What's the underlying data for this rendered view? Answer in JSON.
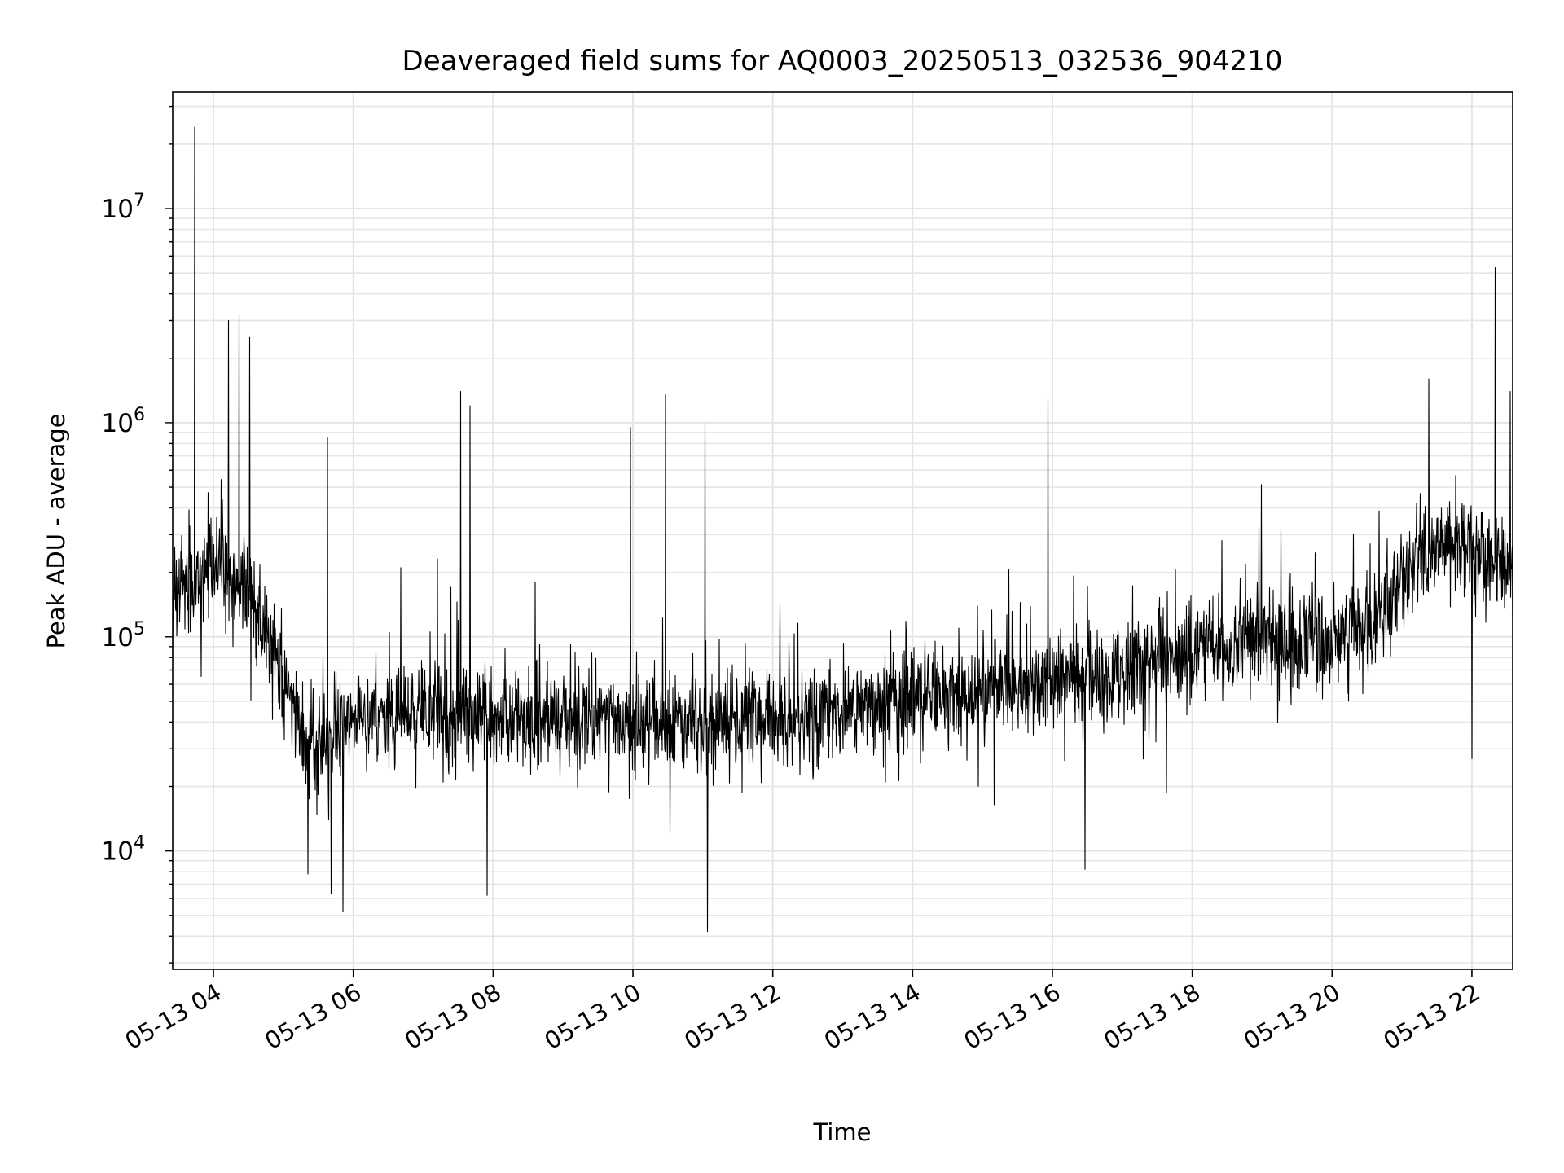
{
  "chart_data": {
    "type": "line",
    "title": "Deaveraged field sums for AQ0003_20250513_032536_904210",
    "xlabel": "Time",
    "ylabel": "Peak ADU - average",
    "x_axis": {
      "kind": "datetime",
      "range": [
        "2025-05-13 03:25",
        "2025-05-13 22:35"
      ],
      "ticks": [
        "05-13 04",
        "05-13 06",
        "05-13 08",
        "05-13 10",
        "05-13 12",
        "05-13 14",
        "05-13 16",
        "05-13 18",
        "05-13 20",
        "05-13 22"
      ]
    },
    "y_axis": {
      "scale": "log",
      "range": [
        2800,
        35000000
      ],
      "ticks": [
        {
          "base": "10",
          "exp": "4",
          "value": 10000
        },
        {
          "base": "10",
          "exp": "5",
          "value": 100000
        },
        {
          "base": "10",
          "exp": "6",
          "value": 1000000
        },
        {
          "base": "10",
          "exp": "7",
          "value": 10000000
        }
      ]
    },
    "grid": true,
    "line_color": "#000000",
    "grid_color": "#e5e5e5",
    "series": [
      {
        "name": "",
        "points": [
          [
            "2025-05-13 03:25",
            150000
          ],
          [
            "2025-05-13 03:35",
            180000
          ],
          [
            "2025-05-13 03:45",
            190000
          ],
          [
            "2025-05-13 04:00",
            200000
          ],
          [
            "2025-05-13 04:15",
            190000
          ],
          [
            "2025-05-13 04:30",
            160000
          ],
          [
            "2025-05-13 04:45",
            110000
          ],
          [
            "2025-05-13 05:00",
            70000
          ],
          [
            "2025-05-13 05:15",
            35000
          ],
          [
            "2025-05-13 05:30",
            30000
          ],
          [
            "2025-05-13 05:45",
            40000
          ],
          [
            "2025-05-13 06:00",
            42000
          ],
          [
            "2025-05-13 07:00",
            45000
          ],
          [
            "2025-05-13 08:00",
            42000
          ],
          [
            "2025-05-13 09:00",
            40000
          ],
          [
            "2025-05-13 10:00",
            40000
          ],
          [
            "2025-05-13 11:00",
            40000
          ],
          [
            "2025-05-13 12:00",
            40000
          ],
          [
            "2025-05-13 13:00",
            45000
          ],
          [
            "2025-05-13 14:00",
            50000
          ],
          [
            "2025-05-13 15:00",
            55000
          ],
          [
            "2025-05-13 16:00",
            60000
          ],
          [
            "2025-05-13 17:00",
            70000
          ],
          [
            "2025-05-13 18:00",
            90000
          ],
          [
            "2025-05-13 19:00",
            95000
          ],
          [
            "2025-05-13 20:00",
            100000
          ],
          [
            "2025-05-13 20:30",
            110000
          ],
          [
            "2025-05-13 21:00",
            180000
          ],
          [
            "2025-05-13 21:30",
            280000
          ],
          [
            "2025-05-13 22:00",
            250000
          ],
          [
            "2025-05-13 22:35",
            220000
          ]
        ],
        "peaks": [
          [
            "2025-05-13 03:44",
            24000000
          ],
          [
            "2025-05-13 04:13",
            3000000
          ],
          [
            "2025-05-13 04:22",
            3200000
          ],
          [
            "2025-05-13 04:31",
            2500000
          ],
          [
            "2025-05-13 05:38",
            850000
          ],
          [
            "2025-05-13 07:32",
            1400000
          ],
          [
            "2025-05-13 07:40",
            1200000
          ],
          [
            "2025-05-13 09:58",
            950000
          ],
          [
            "2025-05-13 10:28",
            1350000
          ],
          [
            "2025-05-13 11:02",
            1000000
          ],
          [
            "2025-05-13 15:56",
            1300000
          ],
          [
            "2025-05-13 21:23",
            1600000
          ],
          [
            "2025-05-13 22:20",
            5300000
          ],
          [
            "2025-05-13 22:33",
            1400000
          ]
        ],
        "dips": [
          [
            "2025-05-13 05:21",
            7800
          ],
          [
            "2025-05-13 05:41",
            6300
          ],
          [
            "2025-05-13 05:51",
            5200
          ],
          [
            "2025-05-13 07:55",
            6200
          ],
          [
            "2025-05-13 11:04",
            4200
          ],
          [
            "2025-05-13 16:28",
            8200
          ],
          [
            "2025-05-13 22:00",
            27000
          ]
        ]
      }
    ]
  }
}
